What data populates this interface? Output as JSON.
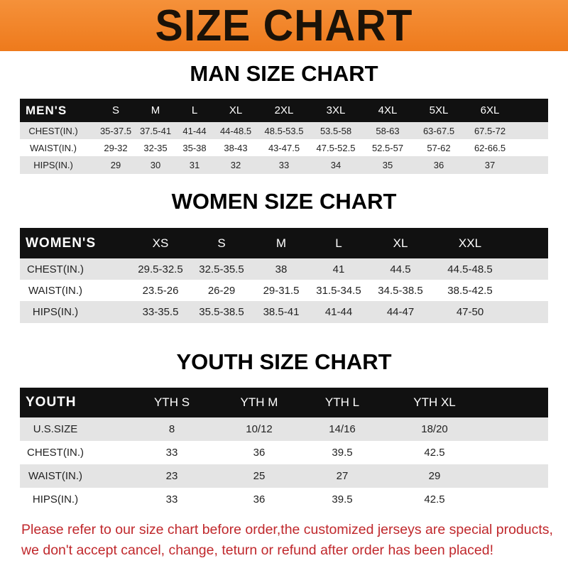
{
  "banner_title": "SIZE CHART",
  "men": {
    "title": "MAN SIZE CHART",
    "header": [
      "MEN'S",
      "S",
      "M",
      "L",
      "XL",
      "2XL",
      "3XL",
      "4XL",
      "5XL",
      "6XL"
    ],
    "rows": [
      [
        "CHEST(IN.)",
        "35-37.5",
        "37.5-41",
        "41-44",
        "44-48.5",
        "48.5-53.5",
        "53.5-58",
        "58-63",
        "63-67.5",
        "67.5-72"
      ],
      [
        "WAIST(IN.)",
        "29-32",
        "32-35",
        "35-38",
        "38-43",
        "43-47.5",
        "47.5-52.5",
        "52.5-57",
        "57-62",
        "62-66.5"
      ],
      [
        "HIPS(IN.)",
        "29",
        "30",
        "31",
        "32",
        "33",
        "34",
        "35",
        "36",
        "37"
      ]
    ]
  },
  "women": {
    "title": "WOMEN SIZE CHART",
    "header": [
      "WOMEN'S",
      "XS",
      "S",
      "M",
      "L",
      "XL",
      "XXL"
    ],
    "rows": [
      [
        "CHEST(IN.)",
        "29.5-32.5",
        "32.5-35.5",
        "38",
        "41",
        "44.5",
        "44.5-48.5"
      ],
      [
        "WAIST(IN.)",
        "23.5-26",
        "26-29",
        "29-31.5",
        "31.5-34.5",
        "34.5-38.5",
        "38.5-42.5"
      ],
      [
        "HIPS(IN.)",
        "33-35.5",
        "35.5-38.5",
        "38.5-41",
        "41-44",
        "44-47",
        "47-50"
      ]
    ]
  },
  "youth": {
    "title": "YOUTH SIZE CHART",
    "header": [
      "YOUTH",
      "YTH S",
      "YTH M",
      "YTH L",
      "YTH XL"
    ],
    "rows": [
      [
        "U.S.SIZE",
        "8",
        "10/12",
        "14/16",
        "18/20"
      ],
      [
        "CHEST(IN.)",
        "33",
        "36",
        "39.5",
        "42.5"
      ],
      [
        "WAIST(IN.)",
        "23",
        "25",
        "27",
        "29"
      ],
      [
        "HIPS(IN.)",
        "33",
        "36",
        "39.5",
        "42.5"
      ]
    ]
  },
  "notice": [
    "Please refer to our size chart before order,the customized jerseys are special products,",
    "we don't accept cancel, change, teturn or refund after order has been placed!"
  ],
  "colors": {
    "banner": "#f08424",
    "header": "#111111",
    "notice": "#c0282c"
  }
}
